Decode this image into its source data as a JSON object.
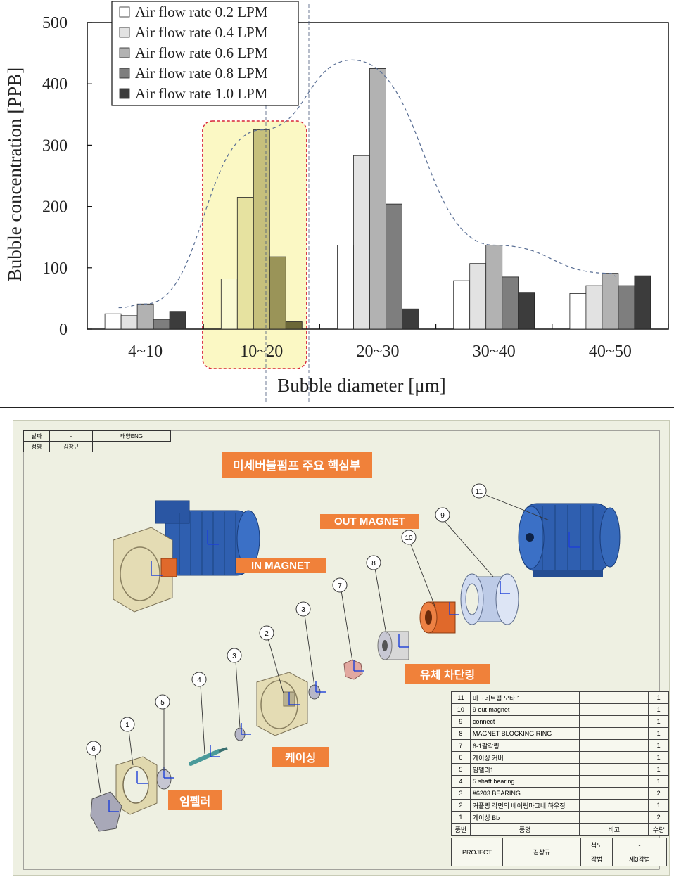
{
  "chart_data": {
    "type": "bar",
    "categories": [
      "4~10",
      "10~20",
      "20~30",
      "30~40",
      "40~50"
    ],
    "series": [
      {
        "name": "Air flow rate 0.2 LPM",
        "values": [
          25,
          82,
          137,
          79,
          58
        ]
      },
      {
        "name": "Air flow rate 0.4 LPM",
        "values": [
          22,
          215,
          283,
          107,
          71
        ]
      },
      {
        "name": "Air flow rate 0.6 LPM",
        "values": [
          41,
          325,
          425,
          137,
          91
        ]
      },
      {
        "name": "Air flow rate 0.8 LPM",
        "values": [
          16,
          118,
          204,
          85,
          71
        ]
      },
      {
        "name": "Air flow rate 1.0 LPM",
        "values": [
          29,
          12,
          33,
          60,
          87
        ]
      }
    ],
    "xlabel": "Bubble diameter [μm]",
    "ylabel": "Bubble concentration [PPB]",
    "ylim": [
      0,
      500
    ],
    "yticks": [
      0,
      100,
      200,
      300,
      400,
      500
    ],
    "legend_position": "top-left",
    "grid": false,
    "highlight_category": "10~20",
    "series_colors": [
      "#ffffff",
      "#e2e2e2",
      "#b2b2b2",
      "#7e7e7e",
      "#3c3c3c"
    ],
    "highlight_colors": [
      "#fafad2",
      "#e6e2a0",
      "#c6c07c",
      "#9a9458",
      "#6c6838"
    ]
  },
  "drawing": {
    "header": {
      "r1c1": "날짜",
      "r1c2": "-",
      "r1c3": "태양ENG",
      "r2c1": "성명",
      "r2c2": "김창규"
    },
    "title": "미세버블펌프 주요 핵심부",
    "labels": {
      "in_magnet": "IN MAGNET",
      "out_magnet": "OUT MAGNET",
      "fluid_ring": "유체 차단링",
      "casing": "케이싱",
      "impeller": "임펠러"
    },
    "balloons": [
      "11",
      "9",
      "10",
      "8",
      "7",
      "3",
      "2",
      "3",
      "4",
      "5",
      "1",
      "6"
    ],
    "parts": [
      {
        "no": "11",
        "name": "마그네트펌 모타 1",
        "remark": "",
        "qty": "1"
      },
      {
        "no": "10",
        "name": "9 out magnet",
        "remark": "",
        "qty": "1"
      },
      {
        "no": "9",
        "name": "connect",
        "remark": "",
        "qty": "1"
      },
      {
        "no": "8",
        "name": "MAGNET BLOCKING RING",
        "remark": "",
        "qty": "1"
      },
      {
        "no": "7",
        "name": "6-1팔각링",
        "remark": "",
        "qty": "1"
      },
      {
        "no": "6",
        "name": "케이싱 커버",
        "remark": "",
        "qty": "1"
      },
      {
        "no": "5",
        "name": "임펠러1",
        "remark": "",
        "qty": "1"
      },
      {
        "no": "4",
        "name": "5 shaft bearing",
        "remark": "",
        "qty": "1"
      },
      {
        "no": "3",
        "name": "#6203 BEARING",
        "remark": "",
        "qty": "2"
      },
      {
        "no": "2",
        "name": "커플링 각면의 베어링마그네 하우징",
        "remark": "",
        "qty": "1"
      },
      {
        "no": "1",
        "name": "케이싱 Bb",
        "remark": "",
        "qty": "2"
      }
    ],
    "parts_header": {
      "no": "품번",
      "name": "품명",
      "remark": "비고",
      "qty": "수량"
    },
    "title_block": {
      "project": "PROJECT",
      "author": "김창규",
      "scale_label": "척도",
      "scale_value": "-",
      "angle_label": "각법",
      "angle_value": "제3각법"
    }
  }
}
